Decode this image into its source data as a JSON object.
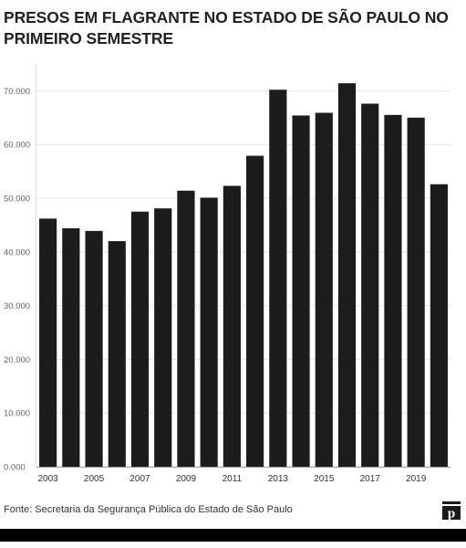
{
  "title": "PRESOS EM FLAGRANTE NO ESTADO DE SÃO PAULO NO PRIMEIRO SEMESTRE",
  "source": "Fonte: Secretaria da Segurança Pública do Estado de São Paulo",
  "logo_letter": "p",
  "colors": {
    "bar": "#1c1c1c",
    "grid": "#e6e6e6",
    "axis_text": "#666666",
    "bottom_bar": "#000000"
  },
  "chart_data": {
    "type": "bar",
    "title": "PRESOS EM FLAGRANTE NO ESTADO DE SÃO PAULO NO PRIMEIRO SEMESTRE",
    "categories": [
      "2003",
      "2004",
      "2005",
      "2006",
      "2007",
      "2008",
      "2009",
      "2010",
      "2011",
      "2012",
      "2013",
      "2014",
      "2015",
      "2016",
      "2017",
      "2018",
      "2019",
      "2020"
    ],
    "values": [
      46200,
      44400,
      43900,
      42000,
      47500,
      48100,
      51400,
      50100,
      52300,
      57900,
      70200,
      65400,
      65900,
      71400,
      67600,
      65500,
      65000,
      52600
    ],
    "x_tick_labels": [
      "2003",
      "2005",
      "2007",
      "2009",
      "2011",
      "2013",
      "2015",
      "2017",
      "2019"
    ],
    "y_tick_labels": [
      "0.000",
      "10.000",
      "20.000",
      "30.000",
      "40.000",
      "50.000",
      "60.000",
      "70.000"
    ],
    "y_ticks": [
      0,
      10000,
      20000,
      30000,
      40000,
      50000,
      60000,
      70000
    ],
    "ylim": [
      0,
      75000
    ],
    "xlabel": "",
    "ylabel": "",
    "grid": true,
    "legend": "none"
  }
}
